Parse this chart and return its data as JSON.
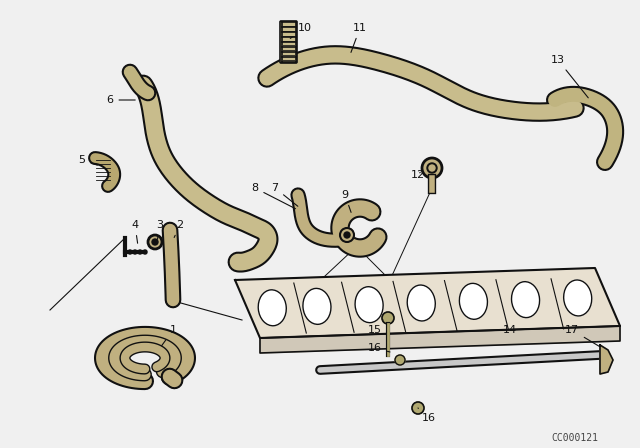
{
  "bg_color": "#f0f0f0",
  "lc": "#111111",
  "watermark": "CC000121",
  "hose_fill": "#d8cfa8",
  "hose_lw": 10,
  "label_fs": 8
}
